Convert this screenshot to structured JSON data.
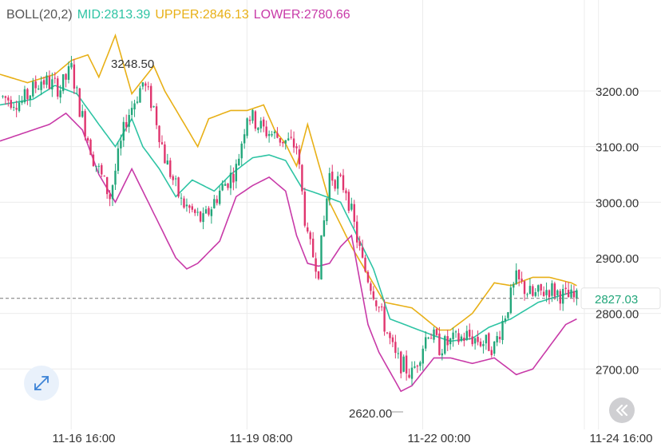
{
  "header": {
    "indicator": "BOLL(20,2)",
    "mid": "MID:2813.39",
    "upper": "UPPER:2846.13",
    "lower": "LOWER:2780.66"
  },
  "colors": {
    "up": "#22a67a",
    "down": "#e0356e",
    "mid": "#2ec4a4",
    "upper": "#e8b017",
    "lower": "#c83aa8",
    "grid": "#ececec",
    "text": "#333333",
    "indicator_label": "#555555"
  },
  "buttons": {
    "expand_icon": "expand-arrows-icon",
    "rewind_icon": "double-chevron-left-icon"
  },
  "chart_data": {
    "type": "candlestick",
    "indicator": "BOLL(20,2)",
    "ylim": [
      2580,
      3340
    ],
    "y_ticks": [
      3200,
      3100,
      3000,
      2900,
      2800,
      2700
    ],
    "y_tick_labels": [
      "3200.00",
      "3100.00",
      "3000.00",
      "2900.00",
      "2800.00",
      "2700.00"
    ],
    "x_tick_labels": [
      "11-16 16:00",
      "11-19 08:00",
      "11-22 00:00",
      "11-24 16:00"
    ],
    "x_tick_index": [
      30,
      94,
      158,
      222
    ],
    "current_price": 2827.03,
    "current_price_label": "2827.03",
    "annotations": [
      {
        "label": "3248.50",
        "value": 3248.5,
        "index": 26
      },
      {
        "label": "2620.00",
        "value": 2620.0,
        "index": 129
      }
    ],
    "anchors": {
      "close": [
        [
          0,
          3190
        ],
        [
          8,
          3180
        ],
        [
          15,
          3220
        ],
        [
          22,
          3205
        ],
        [
          26,
          3240
        ],
        [
          29,
          3170
        ],
        [
          34,
          3080
        ],
        [
          40,
          3010
        ],
        [
          46,
          3150
        ],
        [
          52,
          3215
        ],
        [
          56,
          3170
        ],
        [
          60,
          3080
        ],
        [
          66,
          3000
        ],
        [
          74,
          2965
        ],
        [
          80,
          3020
        ],
        [
          86,
          3060
        ],
        [
          90,
          3160
        ],
        [
          96,
          3130
        ],
        [
          104,
          3110
        ],
        [
          108,
          3100
        ],
        [
          112,
          2930
        ],
        [
          116,
          2880
        ],
        [
          120,
          3050
        ],
        [
          126,
          3025
        ],
        [
          132,
          2890
        ],
        [
          136,
          2840
        ],
        [
          144,
          2720
        ],
        [
          150,
          2690
        ],
        [
          156,
          2770
        ],
        [
          160,
          2740
        ],
        [
          170,
          2760
        ],
        [
          180,
          2740
        ],
        [
          188,
          2860
        ],
        [
          194,
          2830
        ],
        [
          200,
          2845
        ],
        [
          206,
          2830
        ],
        [
          210,
          2825
        ]
      ],
      "upper": [
        [
          0,
          3230
        ],
        [
          10,
          3215
        ],
        [
          20,
          3230
        ],
        [
          26,
          3255
        ],
        [
          32,
          3265
        ],
        [
          36,
          3225
        ],
        [
          42,
          3300
        ],
        [
          48,
          3195
        ],
        [
          56,
          3245
        ],
        [
          60,
          3200
        ],
        [
          66,
          3150
        ],
        [
          72,
          3100
        ],
        [
          76,
          3150
        ],
        [
          84,
          3165
        ],
        [
          90,
          3165
        ],
        [
          96,
          3175
        ],
        [
          100,
          3130
        ],
        [
          104,
          3105
        ],
        [
          108,
          3065
        ],
        [
          112,
          3140
        ],
        [
          120,
          3000
        ],
        [
          128,
          2920
        ],
        [
          134,
          2870
        ],
        [
          140,
          2820
        ],
        [
          150,
          2810
        ],
        [
          160,
          2770
        ],
        [
          164,
          2770
        ],
        [
          172,
          2800
        ],
        [
          180,
          2855
        ],
        [
          186,
          2850
        ],
        [
          194,
          2865
        ],
        [
          200,
          2865
        ],
        [
          208,
          2855
        ],
        [
          210,
          2850
        ]
      ],
      "mid": [
        [
          0,
          3175
        ],
        [
          12,
          3185
        ],
        [
          20,
          3210
        ],
        [
          28,
          3195
        ],
        [
          36,
          3140
        ],
        [
          42,
          3100
        ],
        [
          48,
          3150
        ],
        [
          52,
          3100
        ],
        [
          58,
          3060
        ],
        [
          64,
          3010
        ],
        [
          70,
          3040
        ],
        [
          78,
          3020
        ],
        [
          84,
          3050
        ],
        [
          92,
          3080
        ],
        [
          98,
          3085
        ],
        [
          104,
          3075
        ],
        [
          110,
          3025
        ],
        [
          116,
          3015
        ],
        [
          124,
          3000
        ],
        [
          130,
          2940
        ],
        [
          136,
          2880
        ],
        [
          142,
          2790
        ],
        [
          150,
          2775
        ],
        [
          158,
          2760
        ],
        [
          164,
          2750
        ],
        [
          172,
          2755
        ],
        [
          178,
          2775
        ],
        [
          186,
          2790
        ],
        [
          196,
          2820
        ],
        [
          206,
          2835
        ],
        [
          210,
          2840
        ]
      ],
      "lower": [
        [
          0,
          3110
        ],
        [
          12,
          3130
        ],
        [
          18,
          3140
        ],
        [
          24,
          3160
        ],
        [
          30,
          3130
        ],
        [
          36,
          3050
        ],
        [
          42,
          3000
        ],
        [
          48,
          3060
        ],
        [
          52,
          3020
        ],
        [
          58,
          2960
        ],
        [
          64,
          2900
        ],
        [
          68,
          2880
        ],
        [
          72,
          2890
        ],
        [
          80,
          2930
        ],
        [
          86,
          3010
        ],
        [
          92,
          3030
        ],
        [
          98,
          3045
        ],
        [
          104,
          3020
        ],
        [
          108,
          2940
        ],
        [
          112,
          2890
        ],
        [
          116,
          2885
        ],
        [
          120,
          2890
        ],
        [
          124,
          2920
        ],
        [
          128,
          2940
        ],
        [
          134,
          2780
        ],
        [
          138,
          2730
        ],
        [
          146,
          2660
        ],
        [
          150,
          2670
        ],
        [
          158,
          2720
        ],
        [
          164,
          2720
        ],
        [
          172,
          2710
        ],
        [
          180,
          2720
        ],
        [
          188,
          2690
        ],
        [
          194,
          2700
        ],
        [
          200,
          2740
        ],
        [
          206,
          2780
        ],
        [
          210,
          2790
        ]
      ]
    }
  }
}
